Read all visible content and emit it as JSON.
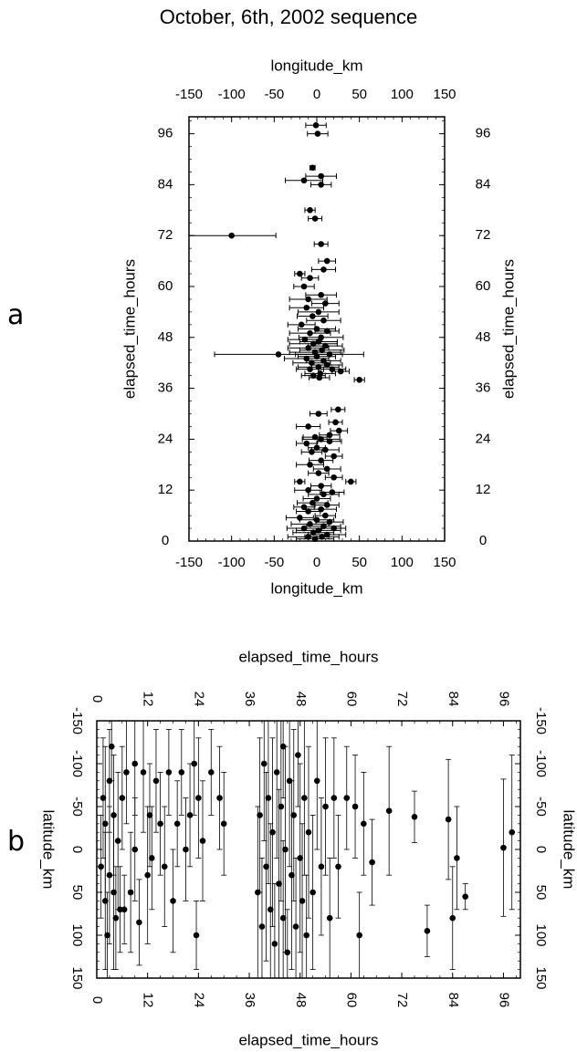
{
  "title": "October, 6th, 2002 sequence",
  "panel_labels": {
    "a": "a",
    "b": "b"
  },
  "chart_data": [
    {
      "type": "scatter",
      "panel": "a",
      "xlabel": "longitude_km",
      "ylabel": "elapsed_time_hours",
      "xlim": [
        -150,
        150
      ],
      "ylim": [
        0,
        100
      ],
      "xticks": [
        "-150",
        "-100",
        "-50",
        "0",
        "50",
        "100",
        "150"
      ],
      "yticks": [
        "0",
        "12",
        "24",
        "36",
        "48",
        "60",
        "72",
        "84",
        "96"
      ],
      "error_bars": "horizontal",
      "points": [
        {
          "x": -1,
          "y": 98,
          "err": 12
        },
        {
          "x": 1,
          "y": 96,
          "err": 12
        },
        {
          "x": -5,
          "y": 88,
          "err": 3
        },
        {
          "x": 5,
          "y": 86,
          "err": 18
        },
        {
          "x": -15,
          "y": 85,
          "err": 22
        },
        {
          "x": 5,
          "y": 84,
          "err": 12
        },
        {
          "x": -8,
          "y": 78,
          "err": 6
        },
        {
          "x": -2,
          "y": 76,
          "err": 8
        },
        {
          "x": -100,
          "y": 72,
          "err": 52
        },
        {
          "x": 5,
          "y": 70,
          "err": 8
        },
        {
          "x": 12,
          "y": 66,
          "err": 10
        },
        {
          "x": 8,
          "y": 64,
          "err": 14
        },
        {
          "x": -20,
          "y": 63,
          "err": 6
        },
        {
          "x": -8,
          "y": 62,
          "err": 10
        },
        {
          "x": -15,
          "y": 60,
          "err": 12
        },
        {
          "x": 5,
          "y": 58,
          "err": 18
        },
        {
          "x": -10,
          "y": 57,
          "err": 22
        },
        {
          "x": 10,
          "y": 56,
          "err": 16
        },
        {
          "x": -12,
          "y": 55,
          "err": 20
        },
        {
          "x": 2,
          "y": 54,
          "err": 24
        },
        {
          "x": -5,
          "y": 53,
          "err": 18
        },
        {
          "x": 8,
          "y": 52,
          "err": 20
        },
        {
          "x": -18,
          "y": 51,
          "err": 16
        },
        {
          "x": 0,
          "y": 50,
          "err": 22
        },
        {
          "x": 12,
          "y": 49.5,
          "err": 14
        },
        {
          "x": -8,
          "y": 49,
          "err": 24
        },
        {
          "x": 5,
          "y": 48,
          "err": 26
        },
        {
          "x": -14,
          "y": 47.5,
          "err": 20
        },
        {
          "x": 2,
          "y": 47,
          "err": 22
        },
        {
          "x": -4,
          "y": 46.5,
          "err": 28
        },
        {
          "x": 10,
          "y": 46,
          "err": 20
        },
        {
          "x": -10,
          "y": 45.5,
          "err": 24
        },
        {
          "x": 6,
          "y": 45,
          "err": 26
        },
        {
          "x": -2,
          "y": 44.5,
          "err": 30
        },
        {
          "x": -45,
          "y": 44,
          "err": 75
        },
        {
          "x": 15,
          "y": 44,
          "err": 40
        },
        {
          "x": 0,
          "y": 43.5,
          "err": 22
        },
        {
          "x": -12,
          "y": 43,
          "err": 26
        },
        {
          "x": 8,
          "y": 42.5,
          "err": 20
        },
        {
          "x": -6,
          "y": 42,
          "err": 22
        },
        {
          "x": 12,
          "y": 41.5,
          "err": 18
        },
        {
          "x": 2,
          "y": 41,
          "err": 24
        },
        {
          "x": -8,
          "y": 40.5,
          "err": 16
        },
        {
          "x": 18,
          "y": 40.5,
          "err": 16
        },
        {
          "x": 28,
          "y": 40,
          "err": 10
        },
        {
          "x": 4,
          "y": 39.5,
          "err": 18
        },
        {
          "x": -4,
          "y": 39,
          "err": 14
        },
        {
          "x": 3,
          "y": 38.5,
          "err": 12
        },
        {
          "x": 50,
          "y": 38,
          "err": 6
        },
        {
          "x": 25,
          "y": 31,
          "err": 8
        },
        {
          "x": 2,
          "y": 30,
          "err": 10
        },
        {
          "x": 22,
          "y": 28,
          "err": 8
        },
        {
          "x": -10,
          "y": 27,
          "err": 14
        },
        {
          "x": 26,
          "y": 26,
          "err": 10
        },
        {
          "x": 15,
          "y": 25,
          "err": 12
        },
        {
          "x": -2,
          "y": 24.5,
          "err": 14
        },
        {
          "x": 5,
          "y": 24,
          "err": 22
        },
        {
          "x": 15,
          "y": 23.5,
          "err": 14
        },
        {
          "x": -12,
          "y": 23,
          "err": 12
        },
        {
          "x": 0,
          "y": 22,
          "err": 10
        },
        {
          "x": 10,
          "y": 21.5,
          "err": 16
        },
        {
          "x": -6,
          "y": 21,
          "err": 12
        },
        {
          "x": 20,
          "y": 20,
          "err": 10
        },
        {
          "x": 5,
          "y": 19,
          "err": 14
        },
        {
          "x": -8,
          "y": 18,
          "err": 16
        },
        {
          "x": 12,
          "y": 17,
          "err": 16
        },
        {
          "x": 2,
          "y": 16,
          "err": 12
        },
        {
          "x": 20,
          "y": 15,
          "err": 10
        },
        {
          "x": 40,
          "y": 14,
          "err": 6
        },
        {
          "x": -20,
          "y": 14,
          "err": 6
        },
        {
          "x": 5,
          "y": 13,
          "err": 12
        },
        {
          "x": -10,
          "y": 12,
          "err": 16
        },
        {
          "x": 18,
          "y": 11.5,
          "err": 14
        },
        {
          "x": 8,
          "y": 11,
          "err": 18
        },
        {
          "x": 0,
          "y": 10,
          "err": 16
        },
        {
          "x": -5,
          "y": 9,
          "err": 18
        },
        {
          "x": 12,
          "y": 8.5,
          "err": 14
        },
        {
          "x": -15,
          "y": 8,
          "err": 12
        },
        {
          "x": 5,
          "y": 7.5,
          "err": 18
        },
        {
          "x": -10,
          "y": 7,
          "err": 14
        },
        {
          "x": 10,
          "y": 6,
          "err": 12
        },
        {
          "x": -20,
          "y": 5.5,
          "err": 16
        },
        {
          "x": 0,
          "y": 5,
          "err": 20
        },
        {
          "x": 15,
          "y": 4.5,
          "err": 16
        },
        {
          "x": -8,
          "y": 4,
          "err": 22
        },
        {
          "x": 8,
          "y": 3.5,
          "err": 20
        },
        {
          "x": -15,
          "y": 3,
          "err": 20
        },
        {
          "x": 20,
          "y": 3,
          "err": 14
        },
        {
          "x": 2,
          "y": 2.5,
          "err": 26
        },
        {
          "x": -4,
          "y": 2,
          "err": 24
        },
        {
          "x": 12,
          "y": 1.5,
          "err": 22
        },
        {
          "x": -10,
          "y": 1,
          "err": 24
        },
        {
          "x": 6,
          "y": 1,
          "err": 20
        },
        {
          "x": -2,
          "y": 0.5,
          "err": 22
        }
      ]
    },
    {
      "type": "scatter",
      "panel": "b",
      "xlabel": "elapsed_time_hours",
      "ylabel": "latitude_km",
      "xlim": [
        0,
        100
      ],
      "ylim": [
        -150,
        150
      ],
      "y_direction": "inverted",
      "xticks": [
        "0",
        "12",
        "24",
        "36",
        "48",
        "60",
        "72",
        "84",
        "96"
      ],
      "yticks": [
        "-150",
        "-100",
        "-50",
        "0",
        "50",
        "100",
        "150"
      ],
      "error_bars": "vertical",
      "points": [
        {
          "x": 1,
          "y": 20,
          "err": 60
        },
        {
          "x": 1.5,
          "y": -60,
          "err": 70
        },
        {
          "x": 2,
          "y": 60,
          "err": 80
        },
        {
          "x": 2,
          "y": -30,
          "err": 90
        },
        {
          "x": 2.5,
          "y": 100,
          "err": 50
        },
        {
          "x": 3,
          "y": -80,
          "err": 60
        },
        {
          "x": 3,
          "y": 30,
          "err": 80
        },
        {
          "x": 3.5,
          "y": -120,
          "err": 40
        },
        {
          "x": 4,
          "y": 50,
          "err": 90
        },
        {
          "x": 4,
          "y": -40,
          "err": 70
        },
        {
          "x": 4.5,
          "y": 80,
          "err": 60
        },
        {
          "x": 5,
          "y": -10,
          "err": 80
        },
        {
          "x": 5.5,
          "y": 70,
          "err": 50
        },
        {
          "x": 6,
          "y": -60,
          "err": 60
        },
        {
          "x": 6.5,
          "y": 70,
          "err": 40
        },
        {
          "x": 7,
          "y": -90,
          "err": 60
        },
        {
          "x": 8,
          "y": 50,
          "err": 70
        },
        {
          "x": 9,
          "y": -100,
          "err": 60
        },
        {
          "x": 9,
          "y": 0,
          "err": 60
        },
        {
          "x": 10,
          "y": 85,
          "err": 50
        },
        {
          "x": 11,
          "y": -90,
          "err": 70
        },
        {
          "x": 12,
          "y": 30,
          "err": 80
        },
        {
          "x": 12.5,
          "y": -40,
          "err": 60
        },
        {
          "x": 13,
          "y": 10,
          "err": 60
        },
        {
          "x": 14,
          "y": -80,
          "err": 60
        },
        {
          "x": 15,
          "y": -30,
          "err": 60
        },
        {
          "x": 16,
          "y": 20,
          "err": 70
        },
        {
          "x": 17,
          "y": -90,
          "err": 50
        },
        {
          "x": 18,
          "y": 60,
          "err": 60
        },
        {
          "x": 19,
          "y": -30,
          "err": 50
        },
        {
          "x": 20,
          "y": -90,
          "err": 50
        },
        {
          "x": 21,
          "y": 0,
          "err": 60
        },
        {
          "x": 22,
          "y": -40,
          "err": 60
        },
        {
          "x": 23,
          "y": -100,
          "err": 60
        },
        {
          "x": 23.5,
          "y": 100,
          "err": 40
        },
        {
          "x": 24,
          "y": -60,
          "err": 70
        },
        {
          "x": 25,
          "y": -10,
          "err": 70
        },
        {
          "x": 27,
          "y": -90,
          "err": 50
        },
        {
          "x": 29,
          "y": -60,
          "err": 60
        },
        {
          "x": 30,
          "y": -30,
          "err": 60
        },
        {
          "x": 38,
          "y": 50,
          "err": 100
        },
        {
          "x": 38.5,
          "y": -40,
          "err": 90
        },
        {
          "x": 39,
          "y": 90,
          "err": 80
        },
        {
          "x": 39.5,
          "y": -100,
          "err": 90
        },
        {
          "x": 40,
          "y": 20,
          "err": 110
        },
        {
          "x": 40.5,
          "y": -60,
          "err": 100
        },
        {
          "x": 41,
          "y": 70,
          "err": 100
        },
        {
          "x": 41.5,
          "y": -20,
          "err": 110
        },
        {
          "x": 42,
          "y": 110,
          "err": 70
        },
        {
          "x": 42.5,
          "y": -90,
          "err": 100
        },
        {
          "x": 43,
          "y": 40,
          "err": 110
        },
        {
          "x": 43.5,
          "y": -50,
          "err": 110
        },
        {
          "x": 44,
          "y": 80,
          "err": 90
        },
        {
          "x": 44,
          "y": -120,
          "err": 60
        },
        {
          "x": 44.5,
          "y": 0,
          "err": 120
        },
        {
          "x": 45,
          "y": 120,
          "err": 50
        },
        {
          "x": 45.5,
          "y": -80,
          "err": 100
        },
        {
          "x": 46,
          "y": 30,
          "err": 110
        },
        {
          "x": 46.5,
          "y": -40,
          "err": 100
        },
        {
          "x": 47,
          "y": 90,
          "err": 80
        },
        {
          "x": 47.5,
          "y": -110,
          "err": 60
        },
        {
          "x": 48,
          "y": 10,
          "err": 110
        },
        {
          "x": 48.5,
          "y": 60,
          "err": 90
        },
        {
          "x": 49,
          "y": -60,
          "err": 90
        },
        {
          "x": 49.5,
          "y": 100,
          "err": 70
        },
        {
          "x": 50,
          "y": -20,
          "err": 100
        },
        {
          "x": 51,
          "y": 50,
          "err": 90
        },
        {
          "x": 52,
          "y": -80,
          "err": 80
        },
        {
          "x": 53,
          "y": 20,
          "err": 80
        },
        {
          "x": 54,
          "y": -50,
          "err": 80
        },
        {
          "x": 55,
          "y": 80,
          "err": 70
        },
        {
          "x": 56,
          "y": -60,
          "err": 70
        },
        {
          "x": 57,
          "y": 20,
          "err": 60
        },
        {
          "x": 59,
          "y": -60,
          "err": 60
        },
        {
          "x": 61,
          "y": -50,
          "err": 60
        },
        {
          "x": 62,
          "y": 100,
          "err": 50
        },
        {
          "x": 63,
          "y": -30,
          "err": 60
        },
        {
          "x": 65,
          "y": 15,
          "err": 50
        },
        {
          "x": 69,
          "y": -45,
          "err": 75
        },
        {
          "x": 75,
          "y": -38,
          "err": 30
        },
        {
          "x": 78,
          "y": 95,
          "err": 30
        },
        {
          "x": 83,
          "y": -35,
          "err": 70
        },
        {
          "x": 84,
          "y": 80,
          "err": 60
        },
        {
          "x": 85,
          "y": 10,
          "err": 60
        },
        {
          "x": 87,
          "y": 55,
          "err": 15
        },
        {
          "x": 96,
          "y": -2,
          "err": 80
        },
        {
          "x": 98,
          "y": -20,
          "err": 90
        }
      ]
    }
  ]
}
